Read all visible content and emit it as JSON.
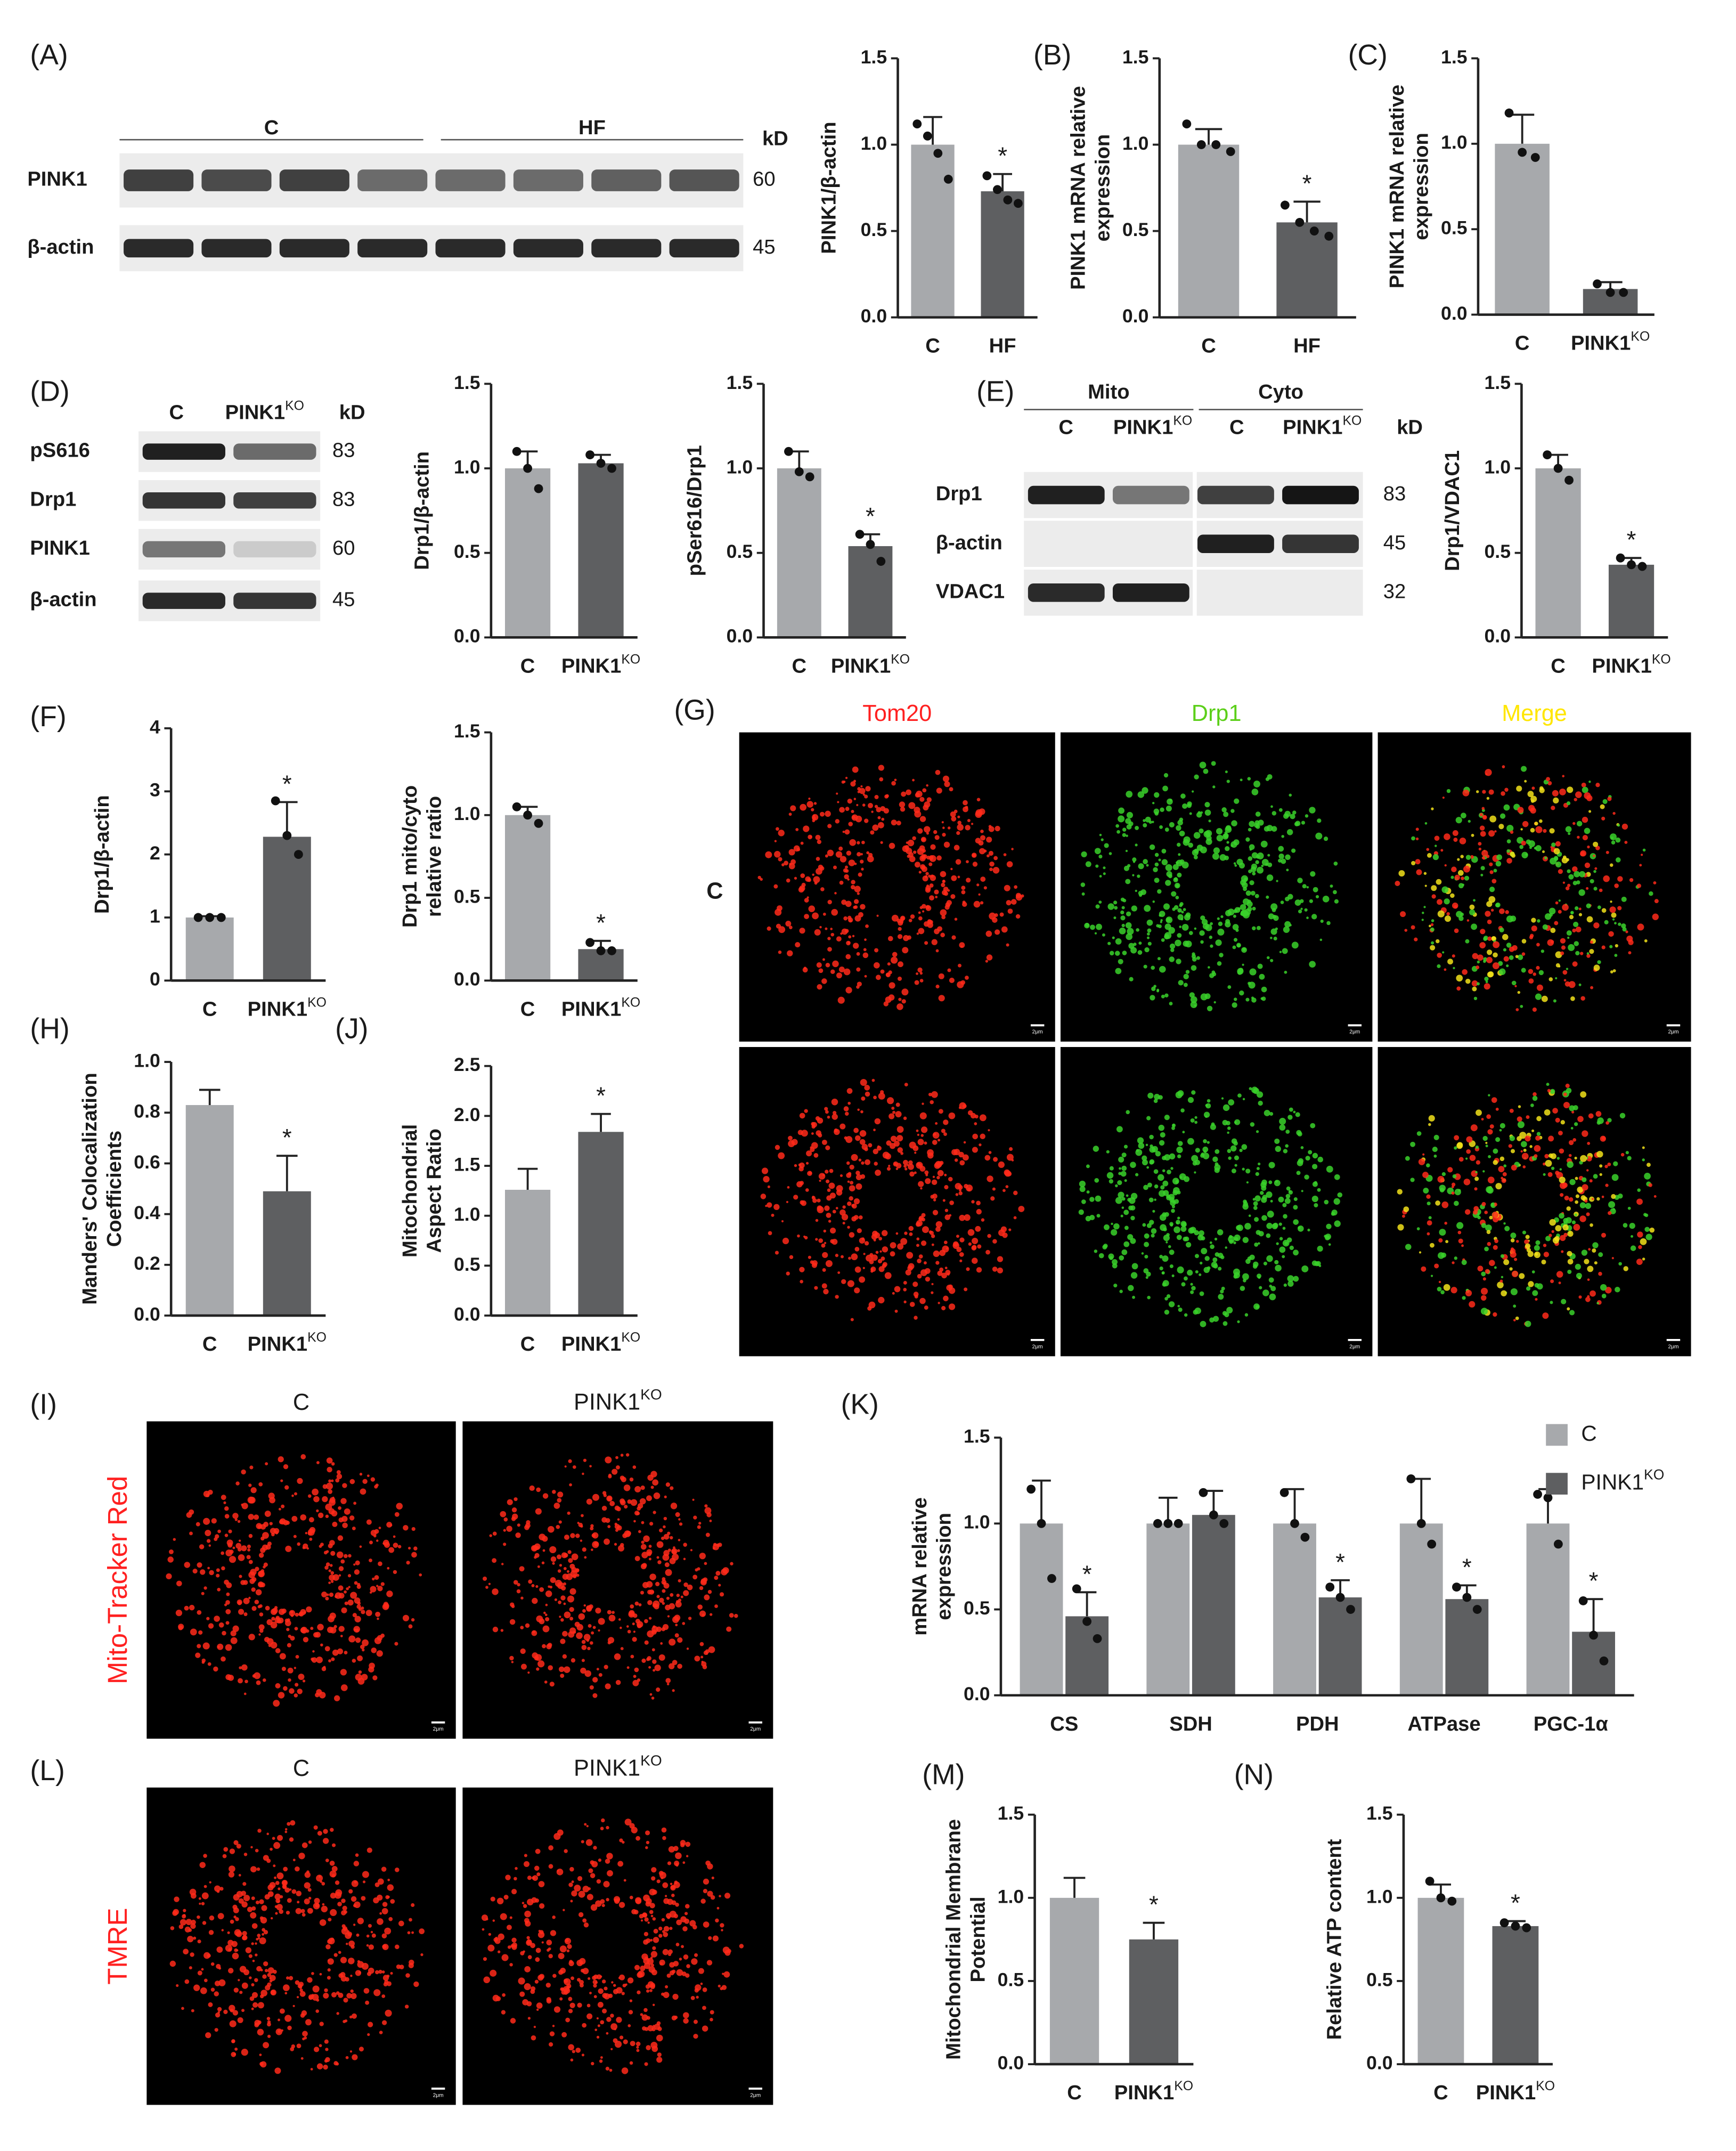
{
  "panel_labels": [
    "(A)",
    "(B)",
    "(C)",
    "(D)",
    "(E)",
    "(F)",
    "(G)",
    "(H)",
    "(J)",
    "(I)",
    "(K)",
    "(L)",
    "(M)",
    "(N)"
  ],
  "blots": [
    {
      "group_headers": [
        "C",
        "HF"
      ],
      "columns": [],
      "unit": "kD",
      "rows": [
        {
          "label": "PINK1",
          "mw": "60"
        },
        {
          "label": "β-actin",
          "mw": "45"
        }
      ]
    },
    {
      "group_headers": [],
      "columns": [
        "C",
        {
          "text": "PINK1",
          "sup": "KO"
        }
      ],
      "unit": "kD",
      "rows": [
        {
          "label": "pS616",
          "mw": "83"
        },
        {
          "label": "Drp1",
          "mw": "83"
        },
        {
          "label": "PINK1",
          "mw": "60"
        },
        {
          "label": "β-actin",
          "mw": "45"
        }
      ]
    },
    {
      "group_headers": [
        "Mito",
        "Cyto"
      ],
      "columns": [
        "C",
        {
          "text": "PINK1",
          "sup": "KO"
        },
        "C",
        {
          "text": "PINK1",
          "sup": "KO"
        }
      ],
      "unit": "kD",
      "rows": [
        {
          "label": "Drp1",
          "mw": "83"
        },
        {
          "label": "β-actin",
          "mw": "45"
        },
        {
          "label": "VDAC1",
          "mw": "32"
        }
      ]
    }
  ],
  "micrographs": [
    {
      "columns": [
        "Tom20",
        "Drp1",
        "Merge"
      ],
      "column_colors": [
        "#ff2020",
        "#5ccf1a",
        "#ffe600"
      ],
      "row_labels": [
        "C"
      ],
      "scale_label": "2μm"
    },
    {
      "columns": [
        "C",
        {
          "text": "PINK1",
          "sup": "KO"
        }
      ],
      "side_label": "Mito-Tracker Red",
      "side_color": "#ff2020",
      "scale_label": "2μm"
    },
    {
      "columns": [
        "C",
        {
          "text": "PINK1",
          "sup": "KO"
        }
      ],
      "side_label": "TMRE",
      "side_color": "#ff2020",
      "scale_label": "2μm"
    }
  ],
  "chart_data": [
    {
      "type": "bar",
      "ylabel": [
        "PINK1/β-actin"
      ],
      "categories": [
        "C",
        "HF"
      ],
      "values": [
        1.0,
        0.73
      ],
      "errors": [
        0.16,
        0.1
      ],
      "points": [
        [
          1.12,
          1.05,
          0.95,
          0.8
        ],
        [
          0.82,
          0.74,
          0.68,
          0.66
        ]
      ],
      "significance": [
        null,
        "*"
      ],
      "colors": [
        "#a7a9ac",
        "#5e5f61"
      ],
      "ylim": [
        0,
        1.5
      ],
      "yticks": [
        {
          "value": 0,
          "label": "0.0"
        },
        {
          "value": 0.5,
          "label": "0.5"
        },
        {
          "value": 1,
          "label": "1.0"
        },
        {
          "value": 1.5,
          "label": "1.5"
        }
      ]
    },
    {
      "type": "bar",
      "ylabel": [
        "PINK1 mRNA relative",
        "expression"
      ],
      "categories": [
        "C",
        "HF"
      ],
      "values": [
        1.0,
        0.55
      ],
      "errors": [
        0.09,
        0.12
      ],
      "points": [
        [
          1.12,
          1.0,
          1.0,
          0.96
        ],
        [
          0.65,
          0.55,
          0.5,
          0.47
        ]
      ],
      "significance": [
        null,
        "*"
      ],
      "colors": [
        "#a7a9ac",
        "#5e5f61"
      ],
      "ylim": [
        0,
        1.5
      ],
      "yticks": [
        {
          "value": 0,
          "label": "0.0"
        },
        {
          "value": 0.5,
          "label": "0.5"
        },
        {
          "value": 1,
          "label": "1.0"
        },
        {
          "value": 1.5,
          "label": "1.5"
        }
      ]
    },
    {
      "type": "bar",
      "ylabel": [
        "PINK1 mRNA relative",
        "expression"
      ],
      "categories": [
        "C",
        {
          "text": "PINK1",
          "sup": "KO"
        }
      ],
      "values": [
        1.0,
        0.15
      ],
      "errors": [
        0.17,
        0.04
      ],
      "points": [
        [
          1.18,
          0.95,
          0.92
        ],
        [
          0.18,
          0.13,
          0.13
        ]
      ],
      "significance": [
        null,
        null
      ],
      "colors": [
        "#a7a9ac",
        "#5e5f61"
      ],
      "ylim": [
        0,
        1.5
      ],
      "yticks": [
        {
          "value": 0,
          "label": "0.0"
        },
        {
          "value": 0.5,
          "label": "0.5"
        },
        {
          "value": 1,
          "label": "1.0"
        },
        {
          "value": 1.5,
          "label": "1.5"
        }
      ]
    },
    {
      "type": "bar",
      "ylabel": [
        "Drp1/β-actin"
      ],
      "categories": [
        "C",
        {
          "text": "PINK1",
          "sup": "KO"
        }
      ],
      "values": [
        1.0,
        1.03
      ],
      "errors": [
        0.1,
        0.05
      ],
      "points": [
        [
          1.1,
          1.0,
          0.88
        ],
        [
          1.08,
          1.03,
          1.0
        ]
      ],
      "significance": [
        null,
        null
      ],
      "colors": [
        "#a7a9ac",
        "#5e5f61"
      ],
      "ylim": [
        0,
        1.5
      ],
      "yticks": [
        {
          "value": 0,
          "label": "0.0"
        },
        {
          "value": 0.5,
          "label": "0.5"
        },
        {
          "value": 1,
          "label": "1.0"
        },
        {
          "value": 1.5,
          "label": "1.5"
        }
      ]
    },
    {
      "type": "bar",
      "ylabel": [
        "pSer616/Drp1"
      ],
      "categories": [
        "C",
        {
          "text": "PINK1",
          "sup": "KO"
        }
      ],
      "values": [
        1.0,
        0.54
      ],
      "errors": [
        0.1,
        0.07
      ],
      "points": [
        [
          1.1,
          0.98,
          0.95
        ],
        [
          0.61,
          0.55,
          0.45
        ]
      ],
      "significance": [
        null,
        "*"
      ],
      "colors": [
        "#a7a9ac",
        "#5e5f61"
      ],
      "ylim": [
        0,
        1.5
      ],
      "yticks": [
        {
          "value": 0,
          "label": "0.0"
        },
        {
          "value": 0.5,
          "label": "0.5"
        },
        {
          "value": 1,
          "label": "1.0"
        },
        {
          "value": 1.5,
          "label": "1.5"
        }
      ]
    },
    {
      "type": "bar",
      "ylabel": [
        "Drp1/VDAC1"
      ],
      "categories": [
        "C",
        {
          "text": "PINK1",
          "sup": "KO"
        }
      ],
      "values": [
        1.0,
        0.43
      ],
      "errors": [
        0.08,
        0.04
      ],
      "points": [
        [
          1.08,
          1.0,
          0.93
        ],
        [
          0.47,
          0.43,
          0.42
        ]
      ],
      "significance": [
        null,
        "*"
      ],
      "colors": [
        "#a7a9ac",
        "#5e5f61"
      ],
      "ylim": [
        0,
        1.5
      ],
      "yticks": [
        {
          "value": 0,
          "label": "0.0"
        },
        {
          "value": 0.5,
          "label": "0.5"
        },
        {
          "value": 1,
          "label": "1.0"
        },
        {
          "value": 1.5,
          "label": "1.5"
        }
      ]
    },
    {
      "type": "bar",
      "ylabel": [
        "Drp1/β-actin"
      ],
      "categories": [
        "C",
        {
          "text": "PINK1",
          "sup": "KO"
        }
      ],
      "values": [
        1.0,
        2.28
      ],
      "errors": [
        0.02,
        0.55
      ],
      "points": [
        [
          1.0,
          1.0,
          1.0
        ],
        [
          2.85,
          2.3,
          2.0
        ]
      ],
      "significance": [
        null,
        "*"
      ],
      "colors": [
        "#a7a9ac",
        "#5e5f61"
      ],
      "ylim": [
        0,
        4
      ],
      "yticks": [
        0,
        1,
        2,
        3,
        4
      ]
    },
    {
      "type": "bar",
      "ylabel": [
        "Drp1 mito/cyto",
        "relative ratio"
      ],
      "categories": [
        "C",
        {
          "text": "PINK1",
          "sup": "KO"
        }
      ],
      "values": [
        1.0,
        0.19
      ],
      "errors": [
        0.05,
        0.05
      ],
      "points": [
        [
          1.05,
          1.0,
          0.95
        ],
        [
          0.23,
          0.18,
          0.18
        ]
      ],
      "significance": [
        null,
        "*"
      ],
      "colors": [
        "#a7a9ac",
        "#5e5f61"
      ],
      "ylim": [
        0,
        1.5
      ],
      "yticks": [
        {
          "value": 0,
          "label": "0.0"
        },
        {
          "value": 0.5,
          "label": "0.5"
        },
        {
          "value": 1,
          "label": "1.0"
        },
        {
          "value": 1.5,
          "label": "1.5"
        }
      ]
    },
    {
      "type": "bar",
      "ylabel": [
        "Manders' Colocalization",
        "Coefficients"
      ],
      "categories": [
        "C",
        {
          "text": "PINK1",
          "sup": "KO"
        }
      ],
      "values": [
        0.83,
        0.49
      ],
      "errors": [
        0.06,
        0.14
      ],
      "significance": [
        null,
        "*"
      ],
      "colors": [
        "#a7a9ac",
        "#5e5f61"
      ],
      "ylim": [
        0,
        1
      ],
      "yticks": [
        {
          "value": 0,
          "label": "0.0"
        },
        {
          "value": 0.2,
          "label": "0.2"
        },
        {
          "value": 0.4,
          "label": "0.4"
        },
        {
          "value": 0.6,
          "label": "0.6"
        },
        {
          "value": 0.8,
          "label": "0.8"
        },
        {
          "value": 1,
          "label": "1.0"
        }
      ]
    },
    {
      "type": "bar",
      "ylabel": [
        "Mitochondrial",
        "Aspect Ratio"
      ],
      "categories": [
        "C",
        {
          "text": "PINK1",
          "sup": "KO"
        }
      ],
      "values": [
        1.26,
        1.84
      ],
      "errors": [
        0.21,
        0.18
      ],
      "significance": [
        null,
        "*"
      ],
      "colors": [
        "#a7a9ac",
        "#5e5f61"
      ],
      "ylim": [
        0,
        2.5
      ],
      "yticks": [
        {
          "value": 0,
          "label": "0.0"
        },
        {
          "value": 0.5,
          "label": "0.5"
        },
        {
          "value": 1,
          "label": "1.0"
        },
        {
          "value": 1.5,
          "label": "1.5"
        },
        {
          "value": 2,
          "label": "2.0"
        },
        {
          "value": 2.5,
          "label": "2.5"
        }
      ]
    },
    {
      "type": "grouped_bar",
      "ylabel": [
        "mRNA relative",
        "expression"
      ],
      "categories": [
        "CS",
        "SDH",
        "PDH",
        "ATPase",
        "PGC-1α"
      ],
      "legend": "upper right",
      "series": [
        {
          "name": "C",
          "color": "#a7a9ac",
          "values": [
            1.0,
            1.0,
            1.0,
            1.0,
            1.0
          ],
          "errors": [
            0.25,
            0.15,
            0.2,
            0.26,
            0.2
          ],
          "points": [
            [
              1.2,
              1.0,
              0.68
            ],
            [
              1.0,
              1.0,
              1.0
            ],
            [
              1.18,
              1.0,
              0.92
            ],
            [
              1.26,
              1.0,
              0.88
            ],
            [
              1.17,
              1.15,
              0.88
            ]
          ],
          "significance": [
            null,
            null,
            null,
            null,
            null
          ]
        },
        {
          "name": {
            "text": "PINK1",
            "sup": "KO"
          },
          "color": "#5e5f61",
          "values": [
            0.46,
            1.05,
            0.57,
            0.56,
            0.37
          ],
          "errors": [
            0.14,
            0.14,
            0.1,
            0.08,
            0.19
          ],
          "points": [
            [
              0.62,
              0.43,
              0.33
            ],
            [
              1.18,
              1.05,
              1.0
            ],
            [
              0.63,
              0.57,
              0.5
            ],
            [
              0.63,
              0.57,
              0.5
            ],
            [
              0.55,
              0.35,
              0.2
            ]
          ],
          "significance": [
            "*",
            null,
            "*",
            "*",
            "*"
          ]
        }
      ],
      "ylim": [
        0,
        1.5
      ],
      "yticks": [
        {
          "value": 0,
          "label": "0.0"
        },
        {
          "value": 0.5,
          "label": "0.5"
        },
        {
          "value": 1,
          "label": "1.0"
        },
        {
          "value": 1.5,
          "label": "1.5"
        }
      ]
    },
    {
      "type": "bar",
      "ylabel": [
        "Mitochondrial Membrane",
        "Potential"
      ],
      "categories": [
        "C",
        {
          "text": "PINK1",
          "sup": "KO"
        }
      ],
      "values": [
        1.0,
        0.75
      ],
      "errors": [
        0.12,
        0.1
      ],
      "significance": [
        null,
        "*"
      ],
      "colors": [
        "#a7a9ac",
        "#5e5f61"
      ],
      "ylim": [
        0,
        1.5
      ],
      "yticks": [
        {
          "value": 0,
          "label": "0.0"
        },
        {
          "value": 0.5,
          "label": "0.5"
        },
        {
          "value": 1,
          "label": "1.0"
        },
        {
          "value": 1.5,
          "label": "1.5"
        }
      ]
    },
    {
      "type": "bar",
      "ylabel": [
        "Relative ATP content"
      ],
      "categories": [
        "C",
        {
          "text": "PINK1",
          "sup": "KO"
        }
      ],
      "values": [
        1.0,
        0.83
      ],
      "errors": [
        0.08,
        0.03
      ],
      "points": [
        [
          1.1,
          1.0,
          0.98
        ],
        [
          0.85,
          0.83,
          0.82
        ]
      ],
      "significance": [
        null,
        "*"
      ],
      "colors": [
        "#a7a9ac",
        "#5e5f61"
      ],
      "ylim": [
        0,
        1.5
      ],
      "yticks": [
        {
          "value": 0,
          "label": "0.0"
        },
        {
          "value": 0.5,
          "label": "0.5"
        },
        {
          "value": 1,
          "label": "1.0"
        },
        {
          "value": 1.5,
          "label": "1.5"
        }
      ]
    }
  ]
}
